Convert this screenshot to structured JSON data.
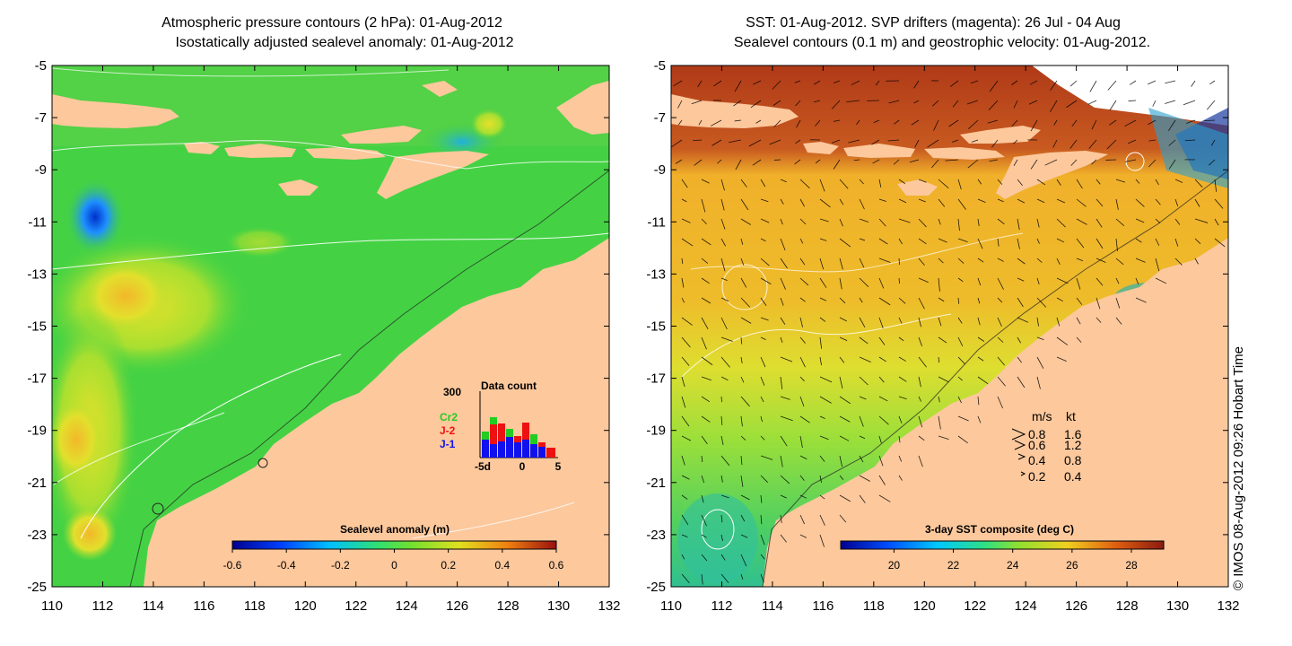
{
  "left_panel": {
    "title_line1": "Atmospheric pressure contours (2 hPa): 01-Aug-2012",
    "title_line2": "Isostatically adjusted sealevel anomaly: 01-Aug-2012",
    "colorbar": {
      "title": "Sealevel anomaly (m)",
      "ticks": [
        "-0.6",
        "-0.4",
        "-0.2",
        "0",
        "0.2",
        "0.4",
        "0.6"
      ]
    },
    "inset": {
      "title": "Data count",
      "y_max_label": "300",
      "x_ticks": [
        "-5d",
        "0",
        "5"
      ],
      "legend": [
        {
          "label": "Cr2",
          "color": "#22cc22"
        },
        {
          "label": "J-2",
          "color": "#ee1111"
        },
        {
          "label": "J-1",
          "color": "#1111ee"
        }
      ]
    }
  },
  "right_panel": {
    "title_line1": "SST: 01-Aug-2012. SVP drifters (magenta): 26 Jul - 04 Aug",
    "title_line2": "Sealevel contours (0.1 m) and geostrophic velocity: 01-Aug-2012.",
    "colorbar": {
      "title": "3-day SST composite (deg C)",
      "ticks": [
        "20",
        "22",
        "24",
        "26",
        "28"
      ]
    },
    "speed_legend": {
      "header_ms": "m/s",
      "header_kt": "kt",
      "rows": [
        {
          "ms": "0.8",
          "kt": "1.6"
        },
        {
          "ms": "0.6",
          "kt": "1.2"
        },
        {
          "ms": "0.4",
          "kt": "0.8"
        },
        {
          "ms": "0.2",
          "kt": "0.4"
        }
      ]
    }
  },
  "axes": {
    "lat_ticks": [
      "-5",
      "-7",
      "-9",
      "-11",
      "-13",
      "-15",
      "-17",
      "-19",
      "-21",
      "-23",
      "-25"
    ],
    "lon_ticks": [
      "110",
      "112",
      "114",
      "116",
      "118",
      "120",
      "122",
      "124",
      "126",
      "128",
      "130",
      "132"
    ]
  },
  "copyright": "© IMOS 08-Aug-2012 09:26 Hobart Time",
  "colors": {
    "land": "#fcc89c",
    "ocean_green": "#44d244",
    "sst_brown": "#b4401a"
  }
}
